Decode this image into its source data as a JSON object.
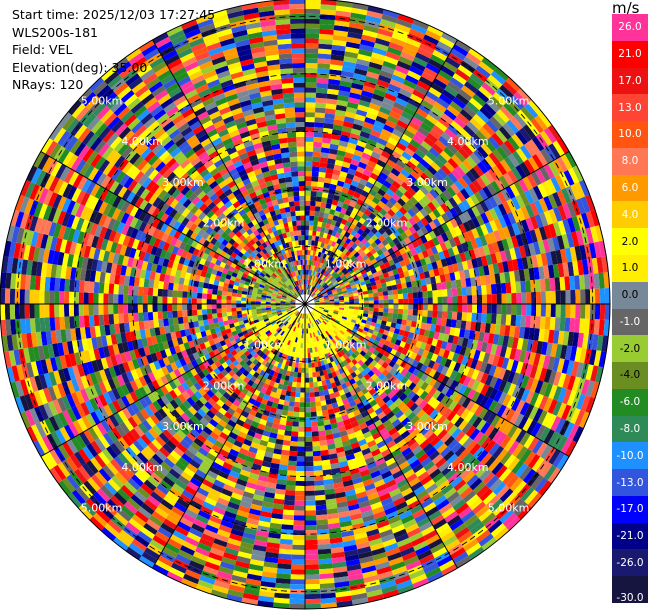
{
  "info": {
    "start_time": "Start time: 2025/12/03 17:27:45",
    "instrument": "WLS200s-181",
    "field": "Field: VEL",
    "elevation": "Elevation(deg): 35.00",
    "nrays": "NRays: 120"
  },
  "colorbar": {
    "unit": "m/s",
    "levels": [
      {
        "label": "26.0",
        "color": "#ff3399"
      },
      {
        "label": "21.0",
        "color": "#ff0000"
      },
      {
        "label": "17.0",
        "color": "#ee1111"
      },
      {
        "label": "13.0",
        "color": "#ff4433"
      },
      {
        "label": "10.0",
        "color": "#ff5511"
      },
      {
        "label": "8.0",
        "color": "#ff7755"
      },
      {
        "label": "6.0",
        "color": "#ff9900"
      },
      {
        "label": "4.0",
        "color": "#ffcc00"
      },
      {
        "label": "2.0",
        "color": "#ffff00"
      },
      {
        "label": "1.0",
        "color": "#ffee00"
      },
      {
        "label": "0.0",
        "color": "#778899"
      },
      {
        "label": "-1.0",
        "color": "#666666"
      },
      {
        "label": "-2.0",
        "color": "#99cc33"
      },
      {
        "label": "-4.0",
        "color": "#6b8e23"
      },
      {
        "label": "-6.0",
        "color": "#228b22"
      },
      {
        "label": "-8.0",
        "color": "#2e8b57"
      },
      {
        "label": "-10.0",
        "color": "#1e90ff"
      },
      {
        "label": "-13.0",
        "color": "#3355dd"
      },
      {
        "label": "-17.0",
        "color": "#0000ff"
      },
      {
        "label": "-21.0",
        "color": "#000088"
      },
      {
        "label": "-26.0",
        "color": "#191970"
      },
      {
        "label": "-30.0",
        "color": "#151540"
      }
    ]
  },
  "chart_data": {
    "type": "heatmap",
    "projection": "polar-ppi",
    "field": "VEL",
    "elevation_deg": 35.0,
    "n_rays": 120,
    "range_rings_km": [
      1.0,
      2.0,
      3.0,
      4.0,
      5.0
    ],
    "ring_labels": [
      "1.00km",
      "2.00km",
      "3.00km",
      "4.00km",
      "5.00km"
    ],
    "spokes_deg": [
      0,
      30,
      60,
      90,
      120,
      150,
      180,
      210,
      240,
      270,
      300,
      330
    ],
    "max_range_km": 5.3,
    "notes_visible": "near-range gates mostly +1 to +2 m/s (yellow) to the south/east and -2 to -4 m/s (green) to the west; beyond ~1 km the field is noisy across the full color range"
  }
}
